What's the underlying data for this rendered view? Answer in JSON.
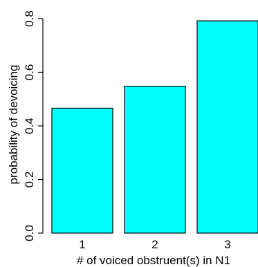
{
  "chart_data": {
    "type": "bar",
    "categories": [
      "1",
      "2",
      "3"
    ],
    "values": [
      0.466,
      0.548,
      0.792
    ],
    "title": "",
    "xlabel": "# of voiced obstruent(s) in N1",
    "ylabel": "probability of devoicing",
    "ylim": [
      0,
      0.8
    ],
    "yticks": [
      "0.0",
      "0.2",
      "0.4",
      "0.6",
      "0.8"
    ],
    "bar_color": "#00FFFF",
    "bar_edge_color": "#000000",
    "grid": false,
    "legend": "none"
  }
}
